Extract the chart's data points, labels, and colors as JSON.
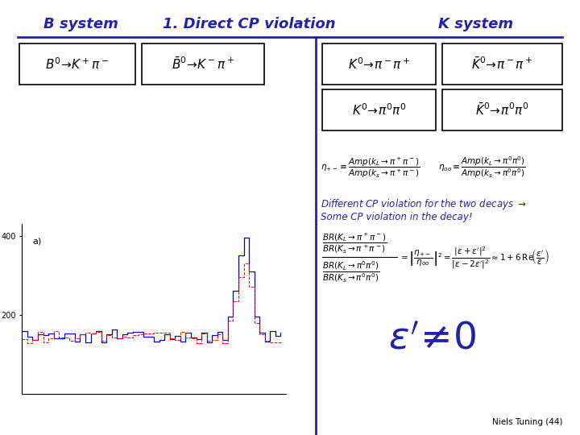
{
  "bg_color": "#ffffff",
  "title_b": "B system",
  "title_main": "1. Direct CP violation",
  "title_k": "K system",
  "blue": "#2222AA",
  "black": "#000000",
  "footer": "Niels Tuning (44)"
}
